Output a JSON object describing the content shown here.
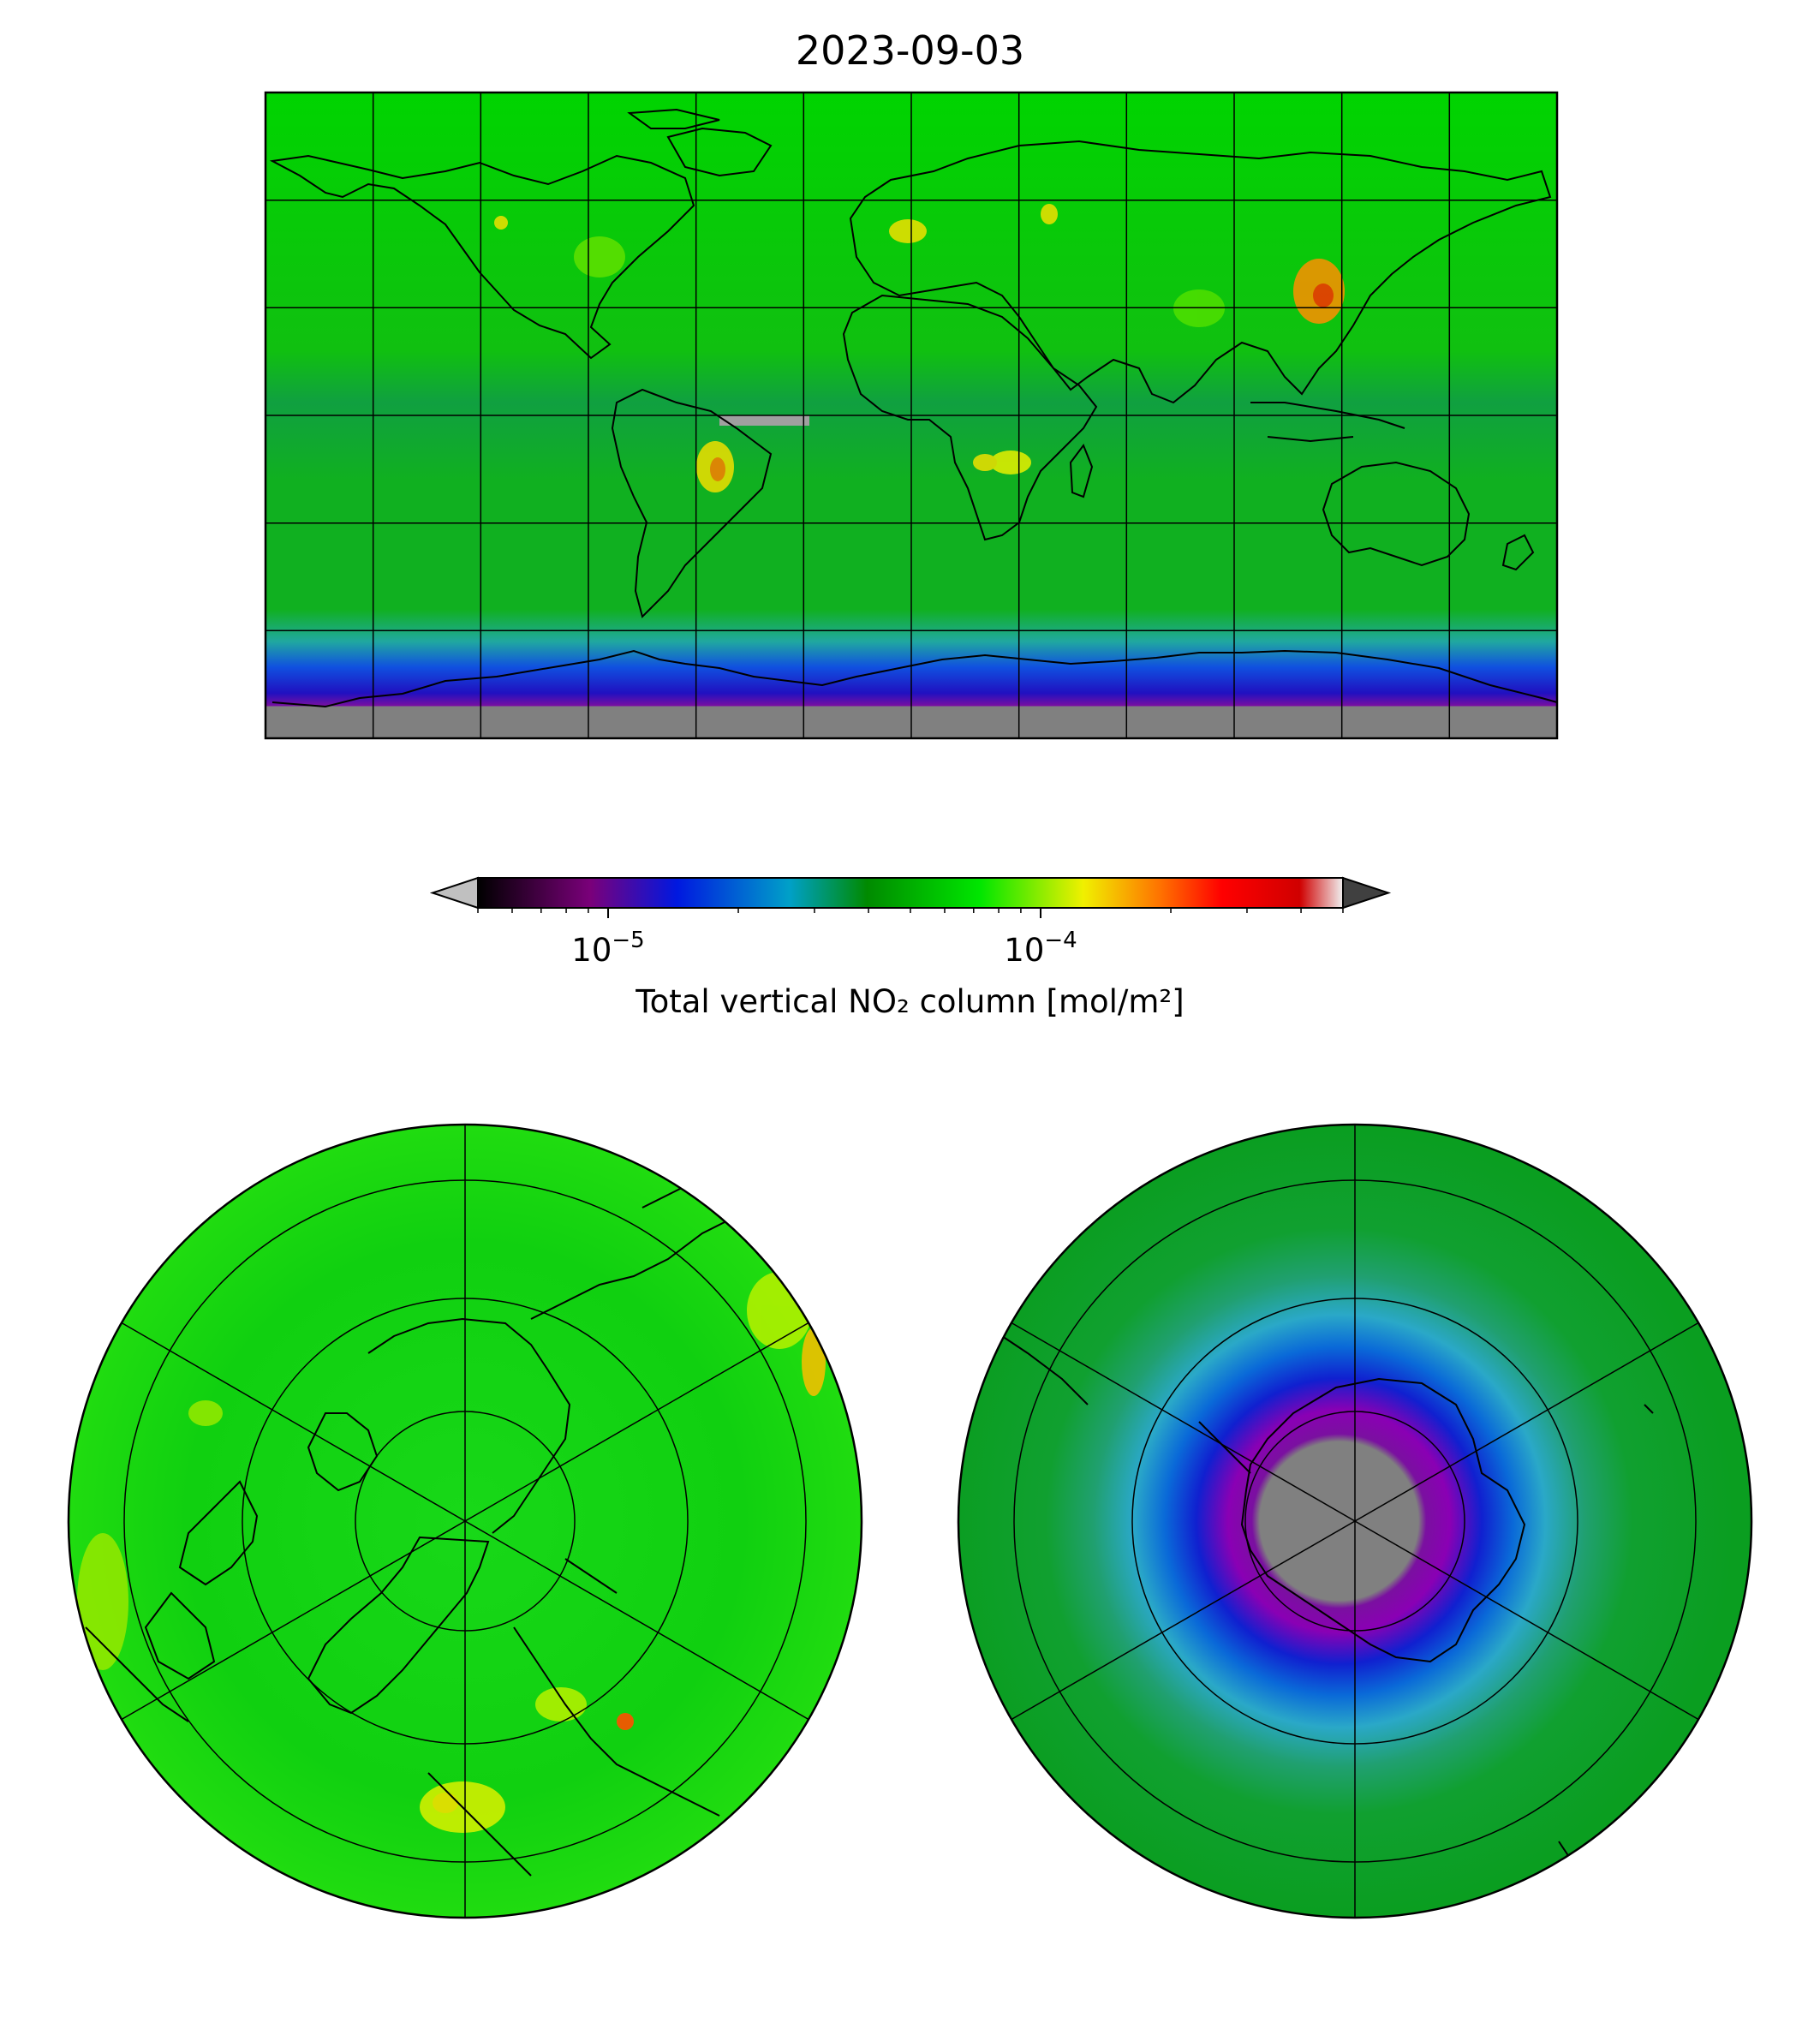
{
  "figure": {
    "title": "2023-09-03"
  },
  "colorbar": {
    "label": "Total vertical NO₂ column [mol/m²]",
    "scale": "log",
    "range": [
      5e-06,
      0.0005
    ],
    "extend": "both",
    "ticks": [
      {
        "base": "10",
        "exponent": "−5",
        "value": 1e-05
      },
      {
        "base": "10",
        "exponent": "−4",
        "value": 0.0001
      }
    ],
    "colors": [
      "#000000",
      "#7a007a",
      "#0018e0",
      "#00a0c8",
      "#008a00",
      "#00e600",
      "#f0f000",
      "#ff7000",
      "#ff0000",
      "#d00000",
      "#f0f0f0"
    ],
    "under_color": "#c0c0c0",
    "over_color": "#404040"
  },
  "maps": [
    {
      "name": "global",
      "projection": "plate-carree",
      "gridlines": true
    },
    {
      "name": "north-pole",
      "projection": "north-polar-stereographic",
      "gridlines": true
    },
    {
      "name": "south-pole",
      "projection": "south-polar-stereographic",
      "gridlines": true
    }
  ]
}
